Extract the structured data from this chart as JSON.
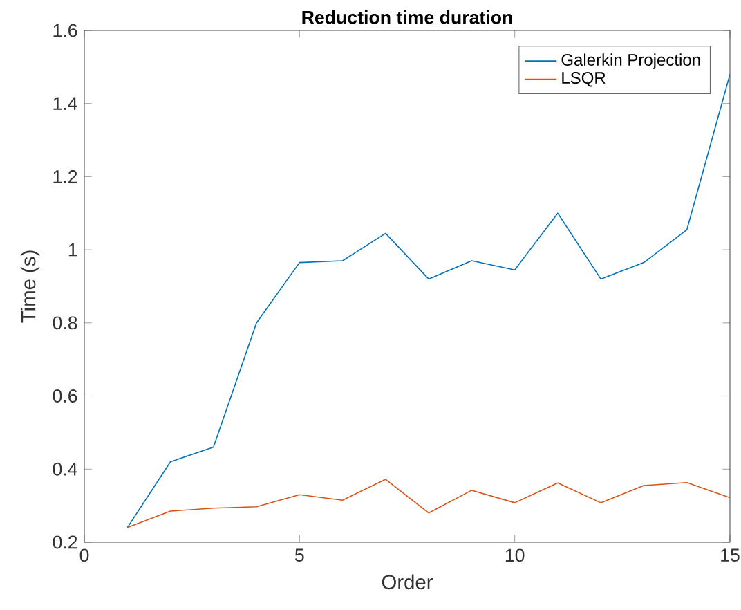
{
  "chart_data": {
    "type": "line",
    "title": "**Reduction time duration**",
    "xlabel": "Order",
    "ylabel": "Time (s)",
    "x": [
      1,
      2,
      3,
      4,
      5,
      6,
      7,
      8,
      9,
      10,
      11,
      12,
      13,
      14,
      15
    ],
    "series": [
      {
        "name": "Galerkin Projection",
        "color": "#0072bd",
        "values": [
          0.24,
          0.42,
          0.46,
          0.8,
          0.965,
          0.97,
          1.045,
          0.92,
          0.97,
          0.945,
          1.1,
          0.92,
          0.965,
          1.055,
          1.48
        ]
      },
      {
        "name": "LSQR",
        "color": "#d95319",
        "values": [
          0.24,
          0.285,
          0.293,
          0.297,
          0.33,
          0.315,
          0.372,
          0.28,
          0.342,
          0.308,
          0.362,
          0.308,
          0.355,
          0.363,
          0.322
        ]
      }
    ],
    "xlim": [
      0,
      15
    ],
    "xticks": [
      0,
      5,
      10,
      15
    ],
    "ylim": [
      0.2,
      1.6
    ],
    "yticks": [
      0.2,
      0.4,
      0.6,
      0.8,
      1,
      1.2,
      1.4,
      1.6
    ],
    "legend": "top right",
    "grid": false,
    "marker": "none",
    "line_style": "solid"
  }
}
